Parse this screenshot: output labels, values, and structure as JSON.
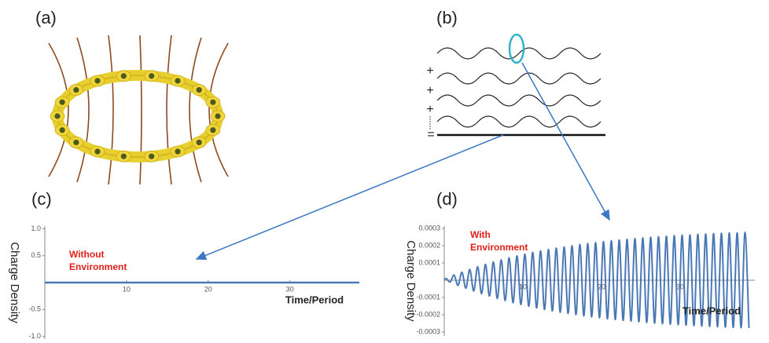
{
  "panels": {
    "a": {
      "label": "(a)"
    },
    "b": {
      "label": "(b)",
      "signs": [
        "+",
        "+",
        "+",
        "="
      ]
    }
  },
  "chart_data": [
    {
      "type": "line",
      "panel_label": "(c)",
      "ylabel": "Charge Density",
      "xlabel": "Time/Period",
      "annotation": [
        "Without",
        "Environment"
      ],
      "annotation_color": "#e0201b",
      "x": [
        0,
        38.5
      ],
      "series": [
        {
          "color": "#4a78b5",
          "values": [
            0,
            0
          ]
        }
      ],
      "xlim": [
        0,
        38.5
      ],
      "ylim": [
        -1.05,
        1.05
      ],
      "xticks": [
        10,
        20,
        30
      ],
      "yticks": [
        {
          "value": -1,
          "label": "-1.0"
        },
        -0.5,
        0.5,
        {
          "value": 1,
          "label": "1.0"
        }
      ]
    },
    {
      "type": "line",
      "smooth": true,
      "panel_label": "(d)",
      "ylabel": "Charge Density",
      "xlabel": "Time/Period",
      "annotation": [
        "With",
        "Environment"
      ],
      "annotation_color": "#e0201b",
      "x": [
        0,
        0.25,
        0.75,
        1.25,
        1.75,
        2.25,
        2.75,
        3.25,
        3.75,
        4.25,
        4.75,
        5.25,
        5.75,
        6.25,
        6.75,
        7.25,
        7.75,
        8.25,
        8.75,
        9.25,
        9.75,
        10.25,
        10.75,
        11.25,
        11.75,
        12.25,
        12.75,
        13.25,
        13.75,
        14.25,
        14.75,
        15.25,
        15.75,
        16.25,
        16.75,
        17.25,
        17.75,
        18.25,
        18.75,
        19.25,
        19.75,
        20.25,
        20.75,
        21.25,
        21.75,
        22.25,
        22.75,
        23.25,
        23.75,
        24.25,
        24.75,
        25.25,
        25.75,
        26.25,
        26.75,
        27.25,
        27.75,
        28.25,
        28.75,
        29.25,
        29.75,
        30.25,
        30.75,
        31.25,
        31.75,
        32.25,
        32.75,
        33.25,
        33.75,
        34.25,
        34.75,
        35.25,
        35.75,
        36.25,
        36.75,
        37.25,
        37.75,
        38.25,
        38.75
      ],
      "series": [
        {
          "color": "#4a78b5",
          "values": [
            0,
            1e-05,
            -1e-05,
            3e-05,
            -3e-05,
            4.6e-05,
            -4.6e-05,
            6.2e-05,
            -6.2e-05,
            7.8e-05,
            -7.8e-05,
            9.2e-05,
            -9.2e-05,
            0.000106,
            -0.000106,
            0.000118,
            -0.000118,
            0.00013,
            -0.00013,
            0.000141,
            -0.000141,
            0.000151,
            -0.000151,
            0.000161,
            -0.000161,
            0.00017,
            -0.00017,
            0.000178,
            -0.000178,
            0.000186,
            -0.000186,
            0.000193,
            -0.000193,
            0.0002,
            -0.0002,
            0.000207,
            -0.000207,
            0.000213,
            -0.000213,
            0.000218,
            -0.000218,
            0.000224,
            -0.000224,
            0.000228,
            -0.000228,
            0.000233,
            -0.000233,
            0.000237,
            -0.000237,
            0.000241,
            -0.000241,
            0.000245,
            -0.000245,
            0.000249,
            -0.000249,
            0.000252,
            -0.000252,
            0.000255,
            -0.000255,
            0.000258,
            -0.000258,
            0.000261,
            -0.000261,
            0.000263,
            -0.000263,
            0.000266,
            -0.000266,
            0.000268,
            -0.000268,
            0.00027,
            -0.00027,
            0.000272,
            -0.000272,
            0.000274,
            -0.000274,
            0.000275,
            -0.000275,
            0.000277,
            -0.000277
          ]
        }
      ],
      "xlim": [
        0,
        39.5
      ],
      "ylim": [
        -0.000323,
        0.000314
      ],
      "xticks": [
        10,
        20,
        30
      ],
      "yticks": [
        -0.0003,
        -0.0002,
        -0.0001,
        0.0001,
        0.0002,
        0.0003
      ]
    }
  ]
}
